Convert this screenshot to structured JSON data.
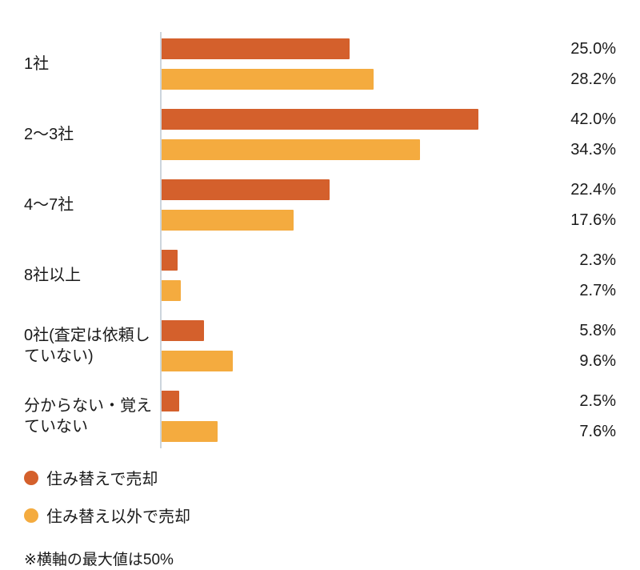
{
  "chart_data": {
    "type": "bar",
    "orientation": "horizontal",
    "title": "",
    "xlabel": "",
    "ylabel": "",
    "xlim": [
      0,
      50
    ],
    "grid": false,
    "legend_position": "bottom",
    "axis_color": "#ccd5dd",
    "categories": [
      "1社",
      "2〜3社",
      "4〜7社",
      "8社以上",
      "0社(査定は依頼していない)",
      "分からない・覚えていない"
    ],
    "series": [
      {
        "name": "住み替えで売却",
        "color": "#d4602c",
        "values": [
          25.0,
          42.0,
          22.4,
          2.3,
          5.8,
          2.5
        ]
      },
      {
        "name": "住み替え以外で売却",
        "color": "#f4ab3f",
        "values": [
          28.2,
          34.3,
          17.6,
          2.7,
          9.6,
          7.6
        ]
      }
    ],
    "value_labels": [
      [
        "25.0%",
        "28.2%"
      ],
      [
        "42.0%",
        "34.3%"
      ],
      [
        "22.4%",
        "17.6%"
      ],
      [
        "2.3%",
        "2.7%"
      ],
      [
        "5.8%",
        "9.6%"
      ],
      [
        "2.5%",
        "7.6%"
      ]
    ],
    "footnote": "※横軸の最大値は50%"
  }
}
